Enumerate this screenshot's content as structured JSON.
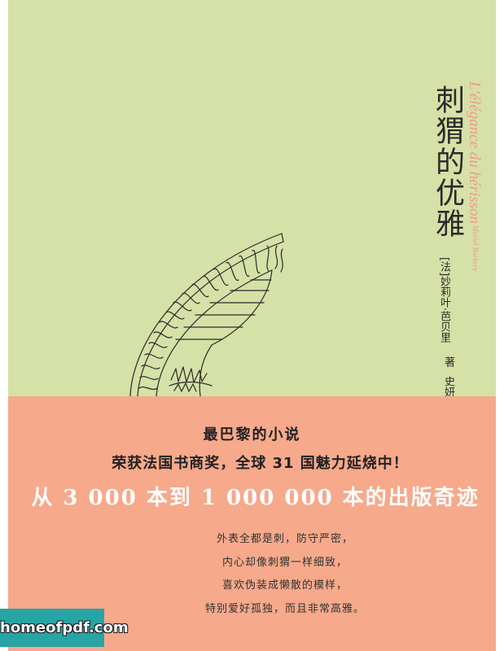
{
  "cover": {
    "title": "刺猬的优雅",
    "title_original": "L'élégance du hérisson",
    "author_original": "Muriel Barbery",
    "author_prefix": "[法]",
    "author_name": "妙莉叶·芭贝里",
    "author_role": "著",
    "translator": "史妍"
  },
  "illustration": {
    "icon": "spiral-staircase-drawing"
  },
  "band": {
    "tagline_1": "最巴黎的小说",
    "tagline_2": "荣获法国书商奖，全球 31 国魅力延烧中！",
    "headline": "从 3 000 本到 1 000 000 本的出版奇迹",
    "poem": [
      "外表全都是刺，防守严密，",
      "内心却像刺猬一样细致，",
      "喜欢伪装成懒散的模样，",
      "特别爱好孤独，而且非常高雅。"
    ]
  },
  "watermark": {
    "text": "homeofpdf.com"
  },
  "colors": {
    "green": "#d5e1a6",
    "salmon": "#f6a98b",
    "ink": "#2b2b2b",
    "fr": "#ef9c84",
    "headline": "#ffffff",
    "wm": "#27a4a6"
  }
}
